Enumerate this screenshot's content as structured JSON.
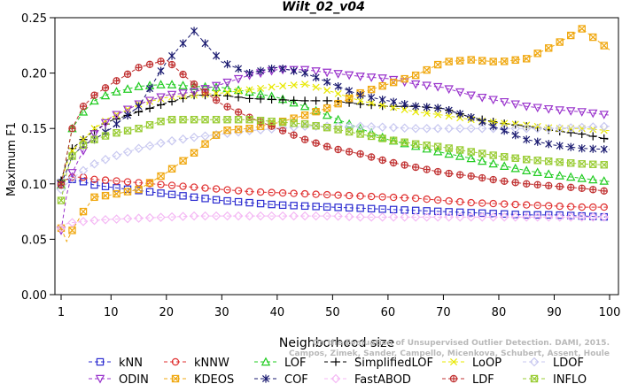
{
  "chart_data": {
    "type": "line",
    "title": "Wilt_02_v04",
    "xlabel": "Neighborhood size",
    "ylabel": "Maximum F1",
    "xlim": [
      1,
      100
    ],
    "ylim": [
      0,
      0.25
    ],
    "x_ticks": [
      "1",
      "10",
      "20",
      "30",
      "40",
      "50",
      "60",
      "70",
      "80",
      "90",
      "100"
    ],
    "y_ticks": [
      "0.00",
      "0.05",
      "0.10",
      "0.15",
      "0.20",
      "0.25"
    ],
    "grid": false,
    "legend_position": "bottom",
    "x_anchors": [
      1,
      2,
      3,
      5,
      7,
      10,
      15,
      20,
      25,
      30,
      35,
      40,
      45,
      50,
      55,
      60,
      65,
      70,
      75,
      80,
      85,
      90,
      95,
      100
    ],
    "series": [
      {
        "name": "kNN",
        "color": "#2b2bd0",
        "marker": "square",
        "values": [
          0.101,
          0.104,
          0.104,
          0.102,
          0.099,
          0.097,
          0.094,
          0.091,
          0.088,
          0.085,
          0.083,
          0.081,
          0.08,
          0.079,
          0.078,
          0.077,
          0.076,
          0.075,
          0.074,
          0.073,
          0.072,
          0.072,
          0.071,
          0.07
        ]
      },
      {
        "name": "kNNW",
        "color": "#e03030",
        "marker": "circle",
        "values": [
          0.1,
          0.104,
          0.106,
          0.106,
          0.104,
          0.103,
          0.101,
          0.099,
          0.097,
          0.095,
          0.093,
          0.092,
          0.091,
          0.09,
          0.089,
          0.088,
          0.087,
          0.085,
          0.083,
          0.082,
          0.081,
          0.08,
          0.079,
          0.079
        ]
      },
      {
        "name": "LOF",
        "color": "#22cc22",
        "marker": "triangle",
        "values": [
          0.099,
          0.125,
          0.15,
          0.165,
          0.175,
          0.182,
          0.188,
          0.19,
          0.188,
          0.187,
          0.183,
          0.178,
          0.17,
          0.16,
          0.15,
          0.14,
          0.134,
          0.128,
          0.123,
          0.117,
          0.112,
          0.108,
          0.105,
          0.102
        ]
      },
      {
        "name": "SimplifiedLOF",
        "color": "#000000",
        "marker": "plus",
        "values": [
          0.103,
          0.12,
          0.132,
          0.14,
          0.148,
          0.157,
          0.165,
          0.173,
          0.18,
          0.18,
          0.177,
          0.176,
          0.175,
          0.175,
          0.172,
          0.17,
          0.17,
          0.168,
          0.16,
          0.155,
          0.152,
          0.148,
          0.145,
          0.14
        ]
      },
      {
        "name": "LoOP",
        "color": "#e8e800",
        "marker": "cross",
        "values": [
          0.101,
          0.118,
          0.13,
          0.14,
          0.15,
          0.16,
          0.172,
          0.178,
          0.18,
          0.182,
          0.185,
          0.188,
          0.19,
          0.183,
          0.175,
          0.17,
          0.165,
          0.162,
          0.158,
          0.155,
          0.153,
          0.15,
          0.15,
          0.148
        ]
      },
      {
        "name": "LDOF",
        "color": "#c8c8f0",
        "marker": "diamond",
        "values": [
          0.095,
          0.1,
          0.105,
          0.112,
          0.118,
          0.124,
          0.132,
          0.138,
          0.142,
          0.145,
          0.148,
          0.15,
          0.152,
          0.152,
          0.152,
          0.151,
          0.15,
          0.15,
          0.15,
          0.15,
          0.15,
          0.15,
          0.151,
          0.152
        ]
      },
      {
        "name": "ODIN",
        "color": "#9933cc",
        "marker": "triangle-down",
        "values": [
          0.058,
          0.09,
          0.11,
          0.13,
          0.145,
          0.16,
          0.172,
          0.18,
          0.183,
          0.19,
          0.198,
          0.203,
          0.203,
          0.2,
          0.197,
          0.195,
          0.19,
          0.187,
          0.18,
          0.175,
          0.17,
          0.167,
          0.165,
          0.162
        ]
      },
      {
        "name": "KDEOS",
        "color": "#f0a810",
        "marker": "square-x",
        "values": [
          0.06,
          0.048,
          0.058,
          0.075,
          0.088,
          0.09,
          0.095,
          0.11,
          0.128,
          0.148,
          0.15,
          0.155,
          0.162,
          0.17,
          0.182,
          0.19,
          0.198,
          0.21,
          0.212,
          0.21,
          0.213,
          0.225,
          0.24,
          0.221
        ]
      },
      {
        "name": "COF",
        "color": "#1a1a70",
        "marker": "asterisk",
        "values": [
          0.1,
          0.112,
          0.125,
          0.135,
          0.14,
          0.15,
          0.17,
          0.21,
          0.238,
          0.21,
          0.2,
          0.205,
          0.2,
          0.19,
          0.18,
          0.175,
          0.17,
          0.168,
          0.16,
          0.15,
          0.14,
          0.135,
          0.132,
          0.131
        ]
      },
      {
        "name": "FastABOD",
        "color": "#f4b8f4",
        "marker": "diamond",
        "values": [
          0.06,
          0.064,
          0.065,
          0.066,
          0.067,
          0.068,
          0.069,
          0.07,
          0.071,
          0.071,
          0.071,
          0.071,
          0.071,
          0.071,
          0.07,
          0.07,
          0.07,
          0.07,
          0.07,
          0.07,
          0.07,
          0.07,
          0.07,
          0.07
        ]
      },
      {
        "name": "LDF",
        "color": "#c03030",
        "marker": "circle-plus",
        "values": [
          0.099,
          0.125,
          0.15,
          0.17,
          0.18,
          0.19,
          0.205,
          0.212,
          0.19,
          0.172,
          0.16,
          0.15,
          0.14,
          0.132,
          0.127,
          0.12,
          0.115,
          0.11,
          0.107,
          0.103,
          0.1,
          0.098,
          0.096,
          0.093
        ]
      },
      {
        "name": "INFLO",
        "color": "#99cc33",
        "marker": "square-x",
        "values": [
          0.085,
          0.11,
          0.125,
          0.135,
          0.14,
          0.145,
          0.15,
          0.158,
          0.158,
          0.158,
          0.158,
          0.156,
          0.154,
          0.15,
          0.145,
          0.14,
          0.136,
          0.133,
          0.129,
          0.125,
          0.122,
          0.12,
          0.118,
          0.117
        ]
      }
    ]
  },
  "watermark": "Campos, Zimek, Sander, Campello, Micenkova, Schubert, Assent, Houle",
  "watermark_line2": "On the Evaluation of Unsupervised Outlier Detection. DAMI, 2015."
}
